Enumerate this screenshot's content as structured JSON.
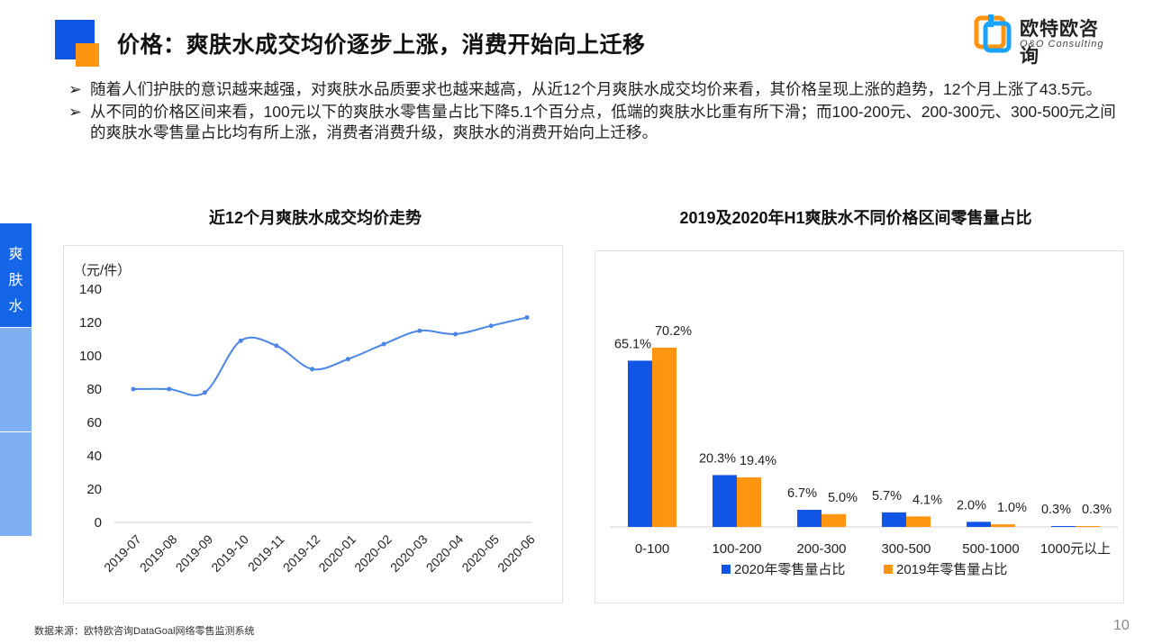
{
  "header": {
    "title": "价格：爽肤水成交均价逐步上涨，消费开始向上迁移",
    "brand_name": "欧特欧咨询",
    "brand_sub": "O&O Consulting"
  },
  "bullets": [
    {
      "mark": "➢",
      "text": "随着人们护肤的意识越来越强，对爽肤水品质要求也越来越高，从近12个月爽肤水成交均价来看，其价格呈现上涨的趋势，12个月上涨了43.5元。"
    },
    {
      "mark": "➢",
      "text": "从不同的价格区间来看，100元以下的爽肤水零售量占比下降5.1个百分点，低端的爽肤水比重有所下滑；而100-200元、200-300元、300-500元之间的爽肤水零售量占比均有所上涨，消费者消费升级，爽肤水的消费开始向上迁移。"
    }
  ],
  "side_tab": {
    "label_chars": [
      "爽",
      "肤",
      "水"
    ]
  },
  "footer": {
    "source": "数据来源：欧特欧咨询DataGoal网络零售监测系统",
    "page_number": "10"
  },
  "colors": {
    "primary_blue": "#1155e6",
    "accent_orange": "#ff9411",
    "line_blue": "#4a86e8",
    "tab_active": "#1565e8",
    "tab_inactive": "#7fb0f4"
  },
  "chart_data": [
    {
      "type": "line",
      "title": "近12个月爽肤水成交均价走势",
      "ylabel": "（元/件）",
      "ylim": [
        0,
        140
      ],
      "yticks": [
        0,
        20,
        40,
        60,
        80,
        100,
        120,
        140
      ],
      "x": [
        "2019-07",
        "2019-08",
        "2019-09",
        "2019-10",
        "2019-11",
        "2019-12",
        "2020-01",
        "2020-02",
        "2020-03",
        "2020-04",
        "2020-05",
        "2020-06"
      ],
      "values": [
        80,
        80,
        78,
        109,
        106,
        92,
        98,
        107,
        115,
        113,
        118,
        123
      ],
      "grid": false,
      "smooth": true
    },
    {
      "type": "bar",
      "title": "2019及2020年H1爽肤水不同价格区间零售量占比",
      "categories": [
        "0-100",
        "100-200",
        "200-300",
        "300-500",
        "500-1000",
        "1000元以上"
      ],
      "series": [
        {
          "name": "2020年零售量占比",
          "values": [
            65.1,
            20.3,
            6.7,
            5.7,
            2.0,
            0.3
          ],
          "labels": [
            "65.1%",
            "20.3%",
            "6.7%",
            "5.7%",
            "2.0%",
            "0.3%"
          ],
          "color": "#1155e6"
        },
        {
          "name": "2019年零售量占比",
          "values": [
            70.2,
            19.4,
            5.0,
            4.1,
            1.0,
            0.3
          ],
          "labels": [
            "70.2%",
            "19.4%",
            "5.0%",
            "4.1%",
            "1.0%",
            "0.3%"
          ],
          "color": "#ff9411"
        }
      ],
      "legend": "bottom",
      "ylim": [
        0,
        80
      ]
    }
  ]
}
